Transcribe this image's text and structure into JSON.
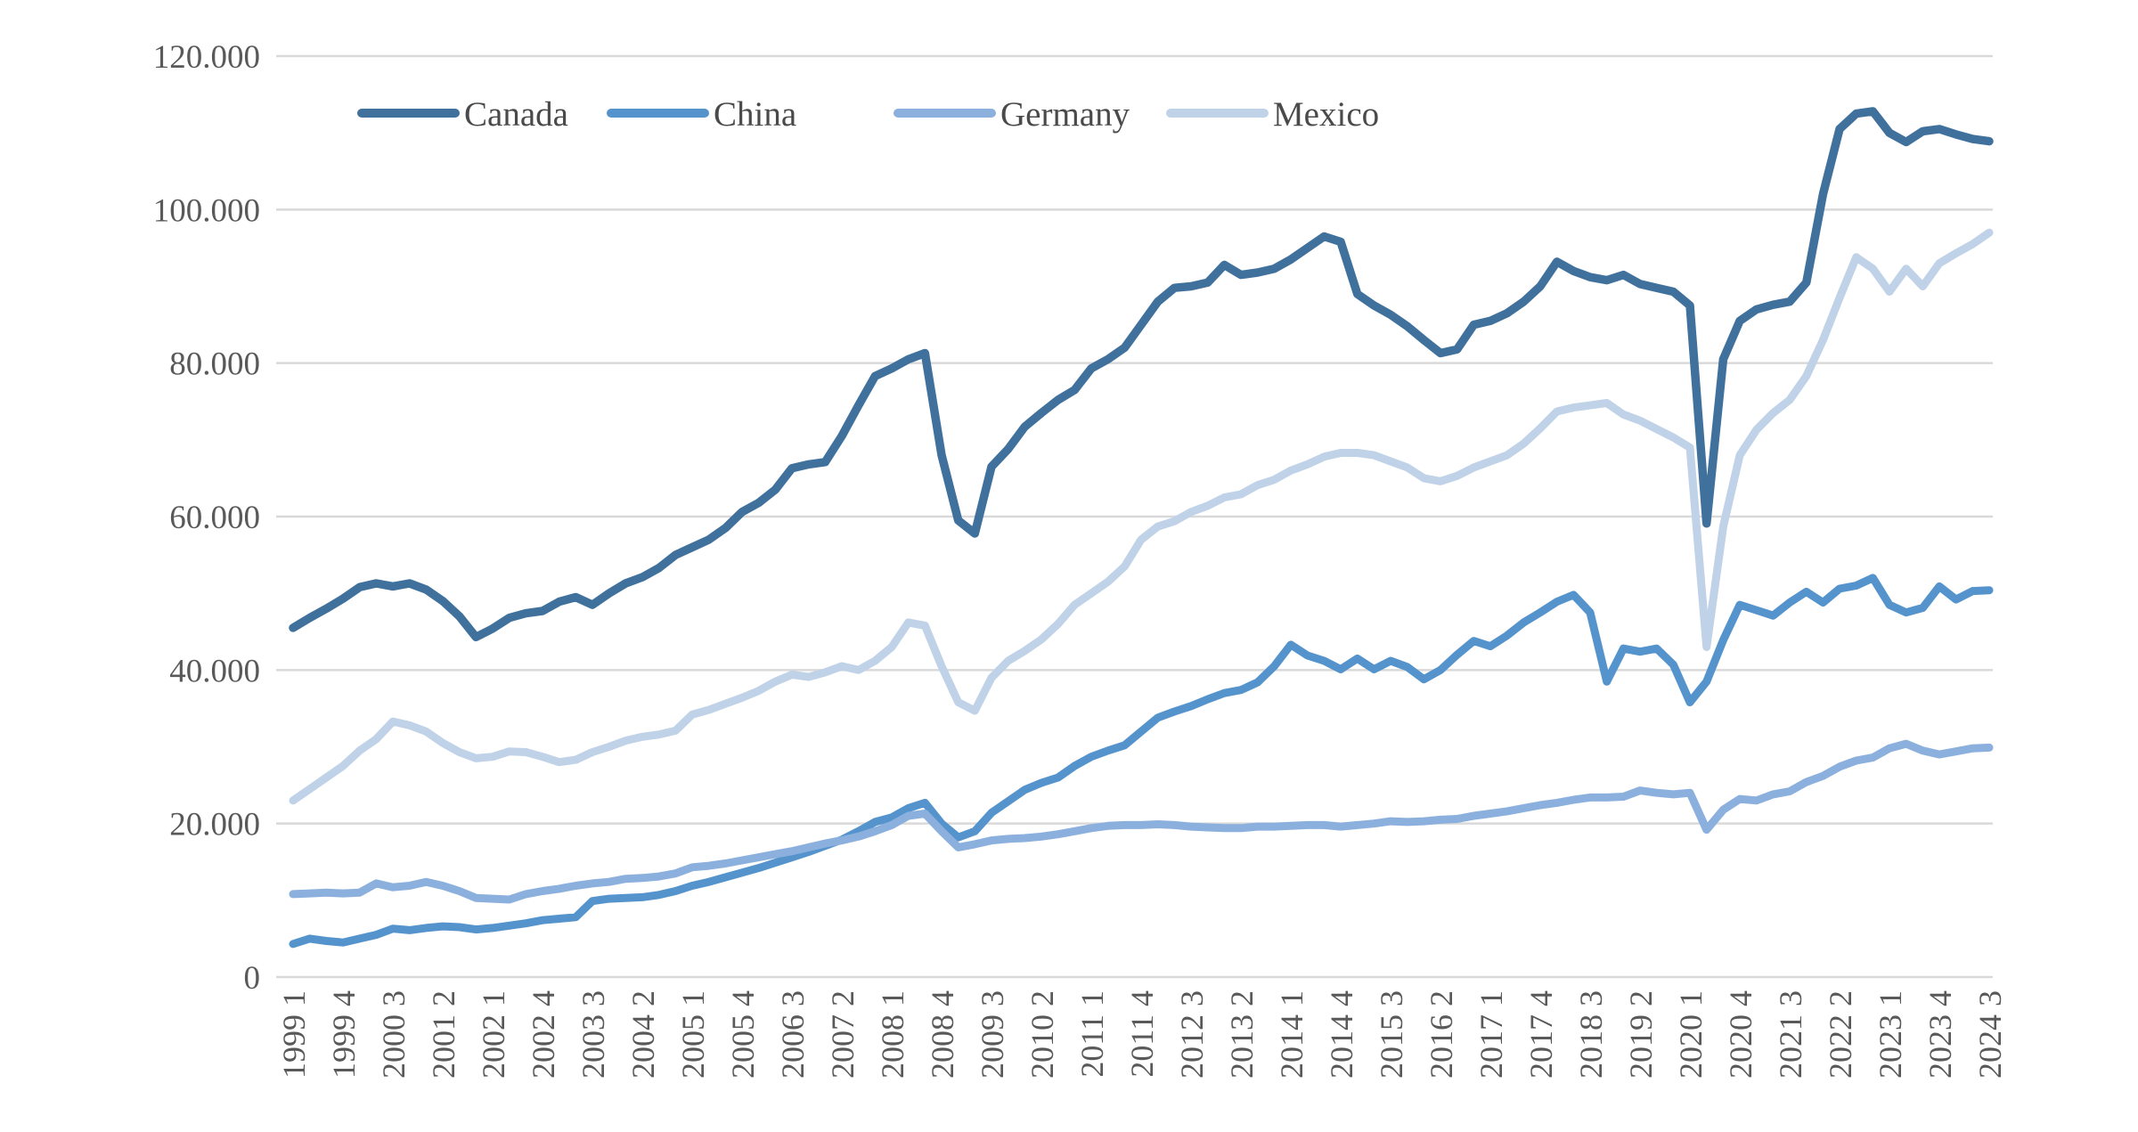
{
  "chart_data": {
    "type": "line",
    "title": "",
    "xlabel": "",
    "ylabel": "",
    "grid": true,
    "legend_position": "top",
    "colors": {
      "grid": "#D9D9D9",
      "axis": "#D9D9D9",
      "text": "#595959",
      "background": "#FFFFFF"
    },
    "y_axis": {
      "min": 0,
      "max": 120000,
      "tick_step": 20000,
      "tick_labels": [
        "0",
        "20.000",
        "40.000",
        "60.000",
        "80.000",
        "100.000",
        "120.000"
      ]
    },
    "x_axis": {
      "unit": "year quarter",
      "first_point": "1999 1",
      "last_point": "2024 3",
      "label_every_n_points": 3,
      "tick_labels": [
        "1999 1",
        "1999 4",
        "2000 3",
        "2001 2",
        "2002 1",
        "2002 4",
        "2003 3",
        "2004 2",
        "2005 1",
        "2005 4",
        "2006 3",
        "2007 2",
        "2008 1",
        "2008 4",
        "2009 3",
        "2010 2",
        "2011 1",
        "2011 4",
        "2012 3",
        "2013 2",
        "2014 1",
        "2014 4",
        "2015 3",
        "2016 2",
        "2017 1",
        "2017 4",
        "2018 3",
        "2019 2",
        "2020 1",
        "2020 4",
        "2021 3",
        "2022 2",
        "2023 1",
        "2023 4",
        "2024 3"
      ]
    },
    "values_unit": "thousands",
    "series": [
      {
        "name": "Canada",
        "color": "#40719C",
        "values": [
          45.5,
          46.8,
          48.0,
          49.3,
          50.8,
          51.3,
          50.9,
          51.3,
          50.5,
          49.0,
          47.0,
          44.3,
          45.4,
          46.8,
          47.4,
          47.7,
          48.9,
          49.5,
          48.5,
          50.0,
          51.3,
          52.1,
          53.3,
          55.0,
          56.0,
          57.0,
          58.5,
          60.6,
          61.8,
          63.5,
          66.3,
          66.8,
          67.1,
          70.5,
          74.5,
          78.3,
          79.3,
          80.5,
          81.3,
          68.0,
          59.5,
          57.8,
          66.5,
          68.8,
          71.7,
          73.5,
          75.2,
          76.5,
          79.3,
          80.5,
          82.0,
          85.0,
          88.0,
          89.8,
          90.0,
          90.5,
          92.8,
          91.5,
          91.8,
          92.3,
          93.5,
          95.0,
          96.5,
          95.8,
          89.0,
          87.5,
          86.3,
          84.8,
          83.0,
          81.3,
          81.8,
          85.0,
          85.5,
          86.5,
          88.0,
          90.0,
          93.2,
          92.0,
          91.2,
          90.8,
          91.5,
          90.3,
          89.8,
          89.3,
          87.5,
          59.1,
          80.5,
          85.5,
          87.0,
          87.6,
          88.0,
          90.5,
          102.0,
          110.5,
          112.5,
          112.8,
          110.0,
          108.8,
          110.2,
          110.5,
          109.8,
          109.2,
          108.9
        ]
      },
      {
        "name": "China",
        "color": "#5593CC",
        "values": [
          4.3,
          5.0,
          4.7,
          4.5,
          5.0,
          5.5,
          6.3,
          6.1,
          6.4,
          6.6,
          6.5,
          6.2,
          6.4,
          6.7,
          7.0,
          7.4,
          7.6,
          7.8,
          9.9,
          10.2,
          10.3,
          10.4,
          10.7,
          11.2,
          11.9,
          12.4,
          13.0,
          13.6,
          14.2,
          14.9,
          15.6,
          16.3,
          17.1,
          17.9,
          19.0,
          20.2,
          20.8,
          22.0,
          22.7,
          20.0,
          18.2,
          19.0,
          21.4,
          22.9,
          24.4,
          25.3,
          26.0,
          27.5,
          28.7,
          29.5,
          30.2,
          32.0,
          33.8,
          34.6,
          35.3,
          36.2,
          37.0,
          37.4,
          38.4,
          40.5,
          43.3,
          41.9,
          41.2,
          40.1,
          41.5,
          40.1,
          41.2,
          40.4,
          38.8,
          40.0,
          42.0,
          43.8,
          43.1,
          44.5,
          46.2,
          47.5,
          48.9,
          49.8,
          47.5,
          38.5,
          42.8,
          42.4,
          42.8,
          40.7,
          35.8,
          38.5,
          43.9,
          48.5,
          47.8,
          47.1,
          48.8,
          50.2,
          48.8,
          50.6,
          51.0,
          52.0,
          48.5,
          47.5,
          48.1,
          50.9,
          49.2,
          50.3,
          50.4
        ]
      },
      {
        "name": "Germany",
        "color": "#8CB0DD",
        "values": [
          10.8,
          10.9,
          11.0,
          10.9,
          11.0,
          12.2,
          11.7,
          11.9,
          12.4,
          11.9,
          11.2,
          10.3,
          10.2,
          10.1,
          10.8,
          11.2,
          11.5,
          11.9,
          12.2,
          12.4,
          12.8,
          12.9,
          13.1,
          13.5,
          14.3,
          14.5,
          14.8,
          15.2,
          15.6,
          16.0,
          16.4,
          16.9,
          17.4,
          17.8,
          18.3,
          19.0,
          19.8,
          21.0,
          21.3,
          19.0,
          16.9,
          17.3,
          17.8,
          18.0,
          18.1,
          18.3,
          18.6,
          19.0,
          19.4,
          19.7,
          19.8,
          19.8,
          19.9,
          19.8,
          19.6,
          19.5,
          19.4,
          19.4,
          19.6,
          19.6,
          19.7,
          19.8,
          19.8,
          19.6,
          19.8,
          20.0,
          20.3,
          20.2,
          20.3,
          20.5,
          20.6,
          21.0,
          21.3,
          21.6,
          22.0,
          22.4,
          22.7,
          23.1,
          23.4,
          23.4,
          23.5,
          24.3,
          24.0,
          23.8,
          24.0,
          19.2,
          21.8,
          23.2,
          23.0,
          23.8,
          24.2,
          25.4,
          26.2,
          27.4,
          28.2,
          28.6,
          29.8,
          30.4,
          29.5,
          29.0,
          29.4,
          29.8,
          29.9
        ]
      },
      {
        "name": "Mexico",
        "color": "#BFD2E8",
        "values": [
          23.0,
          24.5,
          26.0,
          27.5,
          29.5,
          31.0,
          33.3,
          32.8,
          32.0,
          30.5,
          29.3,
          28.5,
          28.7,
          29.4,
          29.3,
          28.7,
          28.0,
          28.3,
          29.3,
          30.0,
          30.8,
          31.3,
          31.6,
          32.1,
          34.2,
          34.8,
          35.6,
          36.4,
          37.3,
          38.5,
          39.4,
          39.1,
          39.7,
          40.5,
          40.0,
          41.2,
          43.0,
          46.2,
          45.8,
          40.5,
          35.8,
          34.7,
          39.0,
          41.2,
          42.5,
          44.0,
          46.0,
          48.5,
          50.0,
          51.5,
          53.5,
          57.0,
          58.7,
          59.4,
          60.6,
          61.4,
          62.5,
          62.9,
          64.1,
          64.8,
          66.0,
          66.8,
          67.8,
          68.3,
          68.3,
          68.0,
          67.2,
          66.4,
          65.0,
          64.6,
          65.3,
          66.4,
          67.2,
          68.0,
          69.5,
          71.5,
          73.7,
          74.2,
          74.5,
          74.8,
          73.3,
          72.5,
          71.4,
          70.3,
          69.0,
          43.0,
          58.7,
          68.0,
          71.3,
          73.5,
          75.2,
          78.3,
          83.0,
          88.5,
          93.8,
          92.3,
          89.3,
          92.3,
          90.0,
          93.0,
          94.3,
          95.5,
          97.0
        ]
      }
    ]
  }
}
